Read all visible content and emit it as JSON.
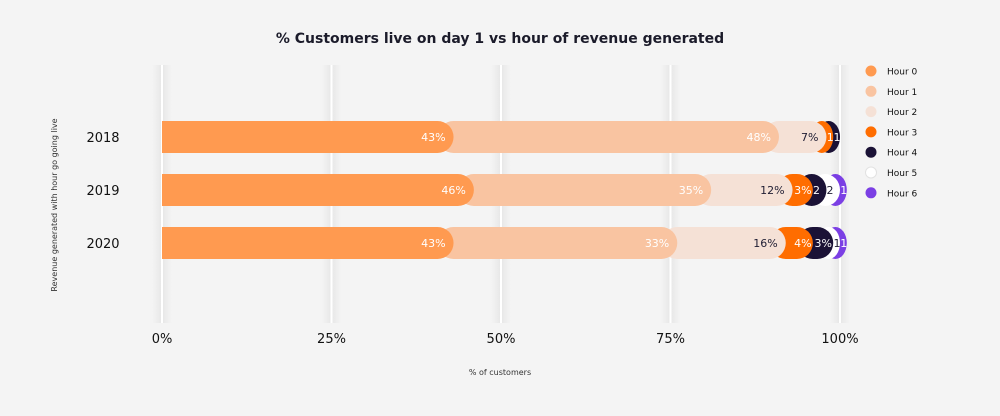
{
  "chart_data": {
    "type": "bar",
    "orientation": "horizontal",
    "stacked": true,
    "title": "% Customers live on day 1 vs hour of revenue generated",
    "xlabel": "% of customers",
    "ylabel": "Revenue generated with hour go going live",
    "xlim": [
      0,
      100
    ],
    "x_ticks": [
      "0%",
      "25%",
      "50%",
      "75%",
      "100%"
    ],
    "categories": [
      "2018",
      "2019",
      "2020"
    ],
    "legend_position": "right",
    "grid": true,
    "series": [
      {
        "name": "Hour 0",
        "color": "#FF9A50",
        "label_color": "#ffffff",
        "values": [
          43,
          46,
          43
        ],
        "labels": [
          "43%",
          "46%",
          "43%"
        ]
      },
      {
        "name": "Hour 1",
        "color": "#F9C4A1",
        "label_color": "#ffffff",
        "values": [
          48,
          35,
          33
        ],
        "labels": [
          "48%",
          "35%",
          "33%"
        ]
      },
      {
        "name": "Hour 2",
        "color": "#F5E1D6",
        "label_color": "#1f1d33",
        "values": [
          7,
          12,
          16
        ],
        "labels": [
          "7%",
          "12%",
          "16%"
        ]
      },
      {
        "name": "Hour 3",
        "color": "#FF6D00",
        "label_color": "#ffffff",
        "values": [
          1,
          3,
          4
        ],
        "labels": [
          "1",
          "3%",
          "4%"
        ]
      },
      {
        "name": "Hour 4",
        "color": "#1B1236",
        "label_color": "#ffffff",
        "values": [
          1,
          2,
          3
        ],
        "labels": [
          "1",
          "2",
          "3%"
        ]
      },
      {
        "name": "Hour 5",
        "color": "#FFFFFF",
        "label_color": "#1f1d33",
        "values": [
          0,
          2,
          1
        ],
        "labels": [
          "",
          "2",
          "1"
        ]
      },
      {
        "name": "Hour 6",
        "color": "#7B3FE4",
        "label_color": "#ffffff",
        "values": [
          0,
          1,
          1
        ],
        "labels": [
          "",
          "1",
          "1"
        ]
      }
    ]
  }
}
